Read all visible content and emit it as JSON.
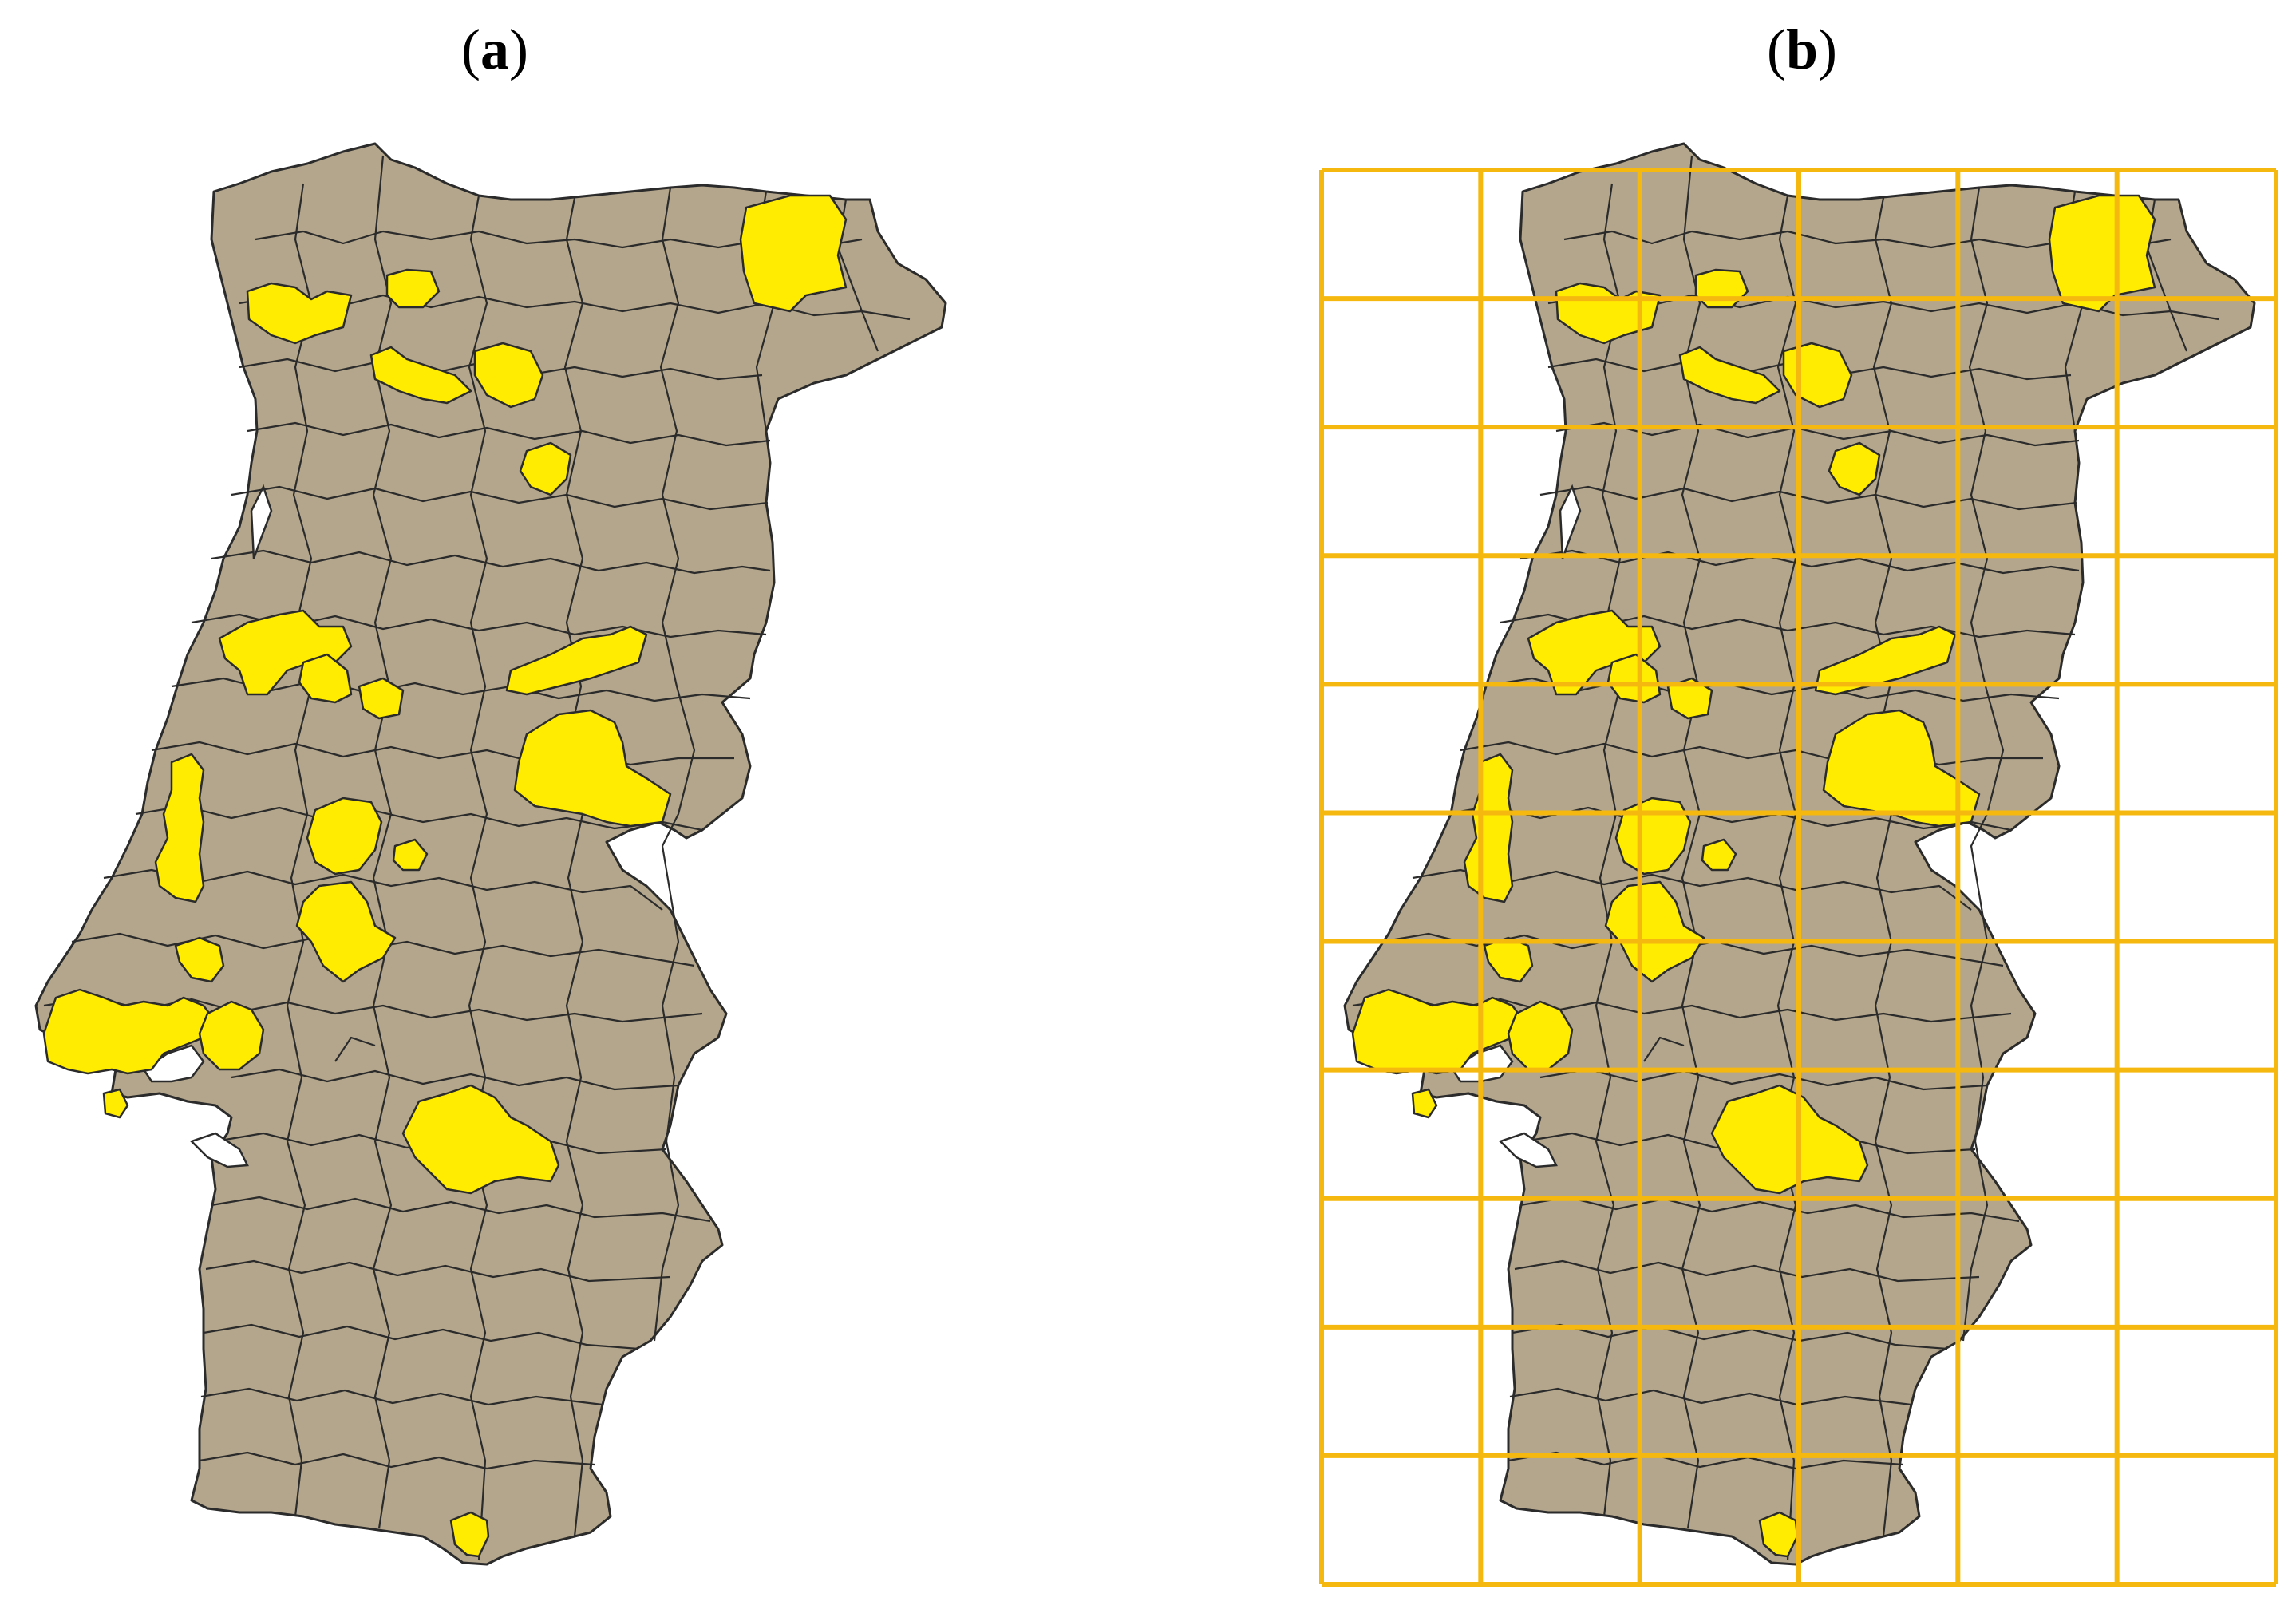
{
  "panels": [
    {
      "id": "a",
      "label_open": "(",
      "label_letter": "a",
      "label_close": ")",
      "has_grid": false
    },
    {
      "id": "b",
      "label_open": "(",
      "label_letter": "b",
      "label_close": ")",
      "has_grid": true
    }
  ],
  "map": {
    "region_fill": "#b3a68c",
    "highlight_fill": "#ffec00",
    "border_color": "#2b2b2b",
    "water_fill": "#ffffff"
  },
  "grid": {
    "color": "#f5b80f",
    "columns": 6,
    "rows": 11
  }
}
